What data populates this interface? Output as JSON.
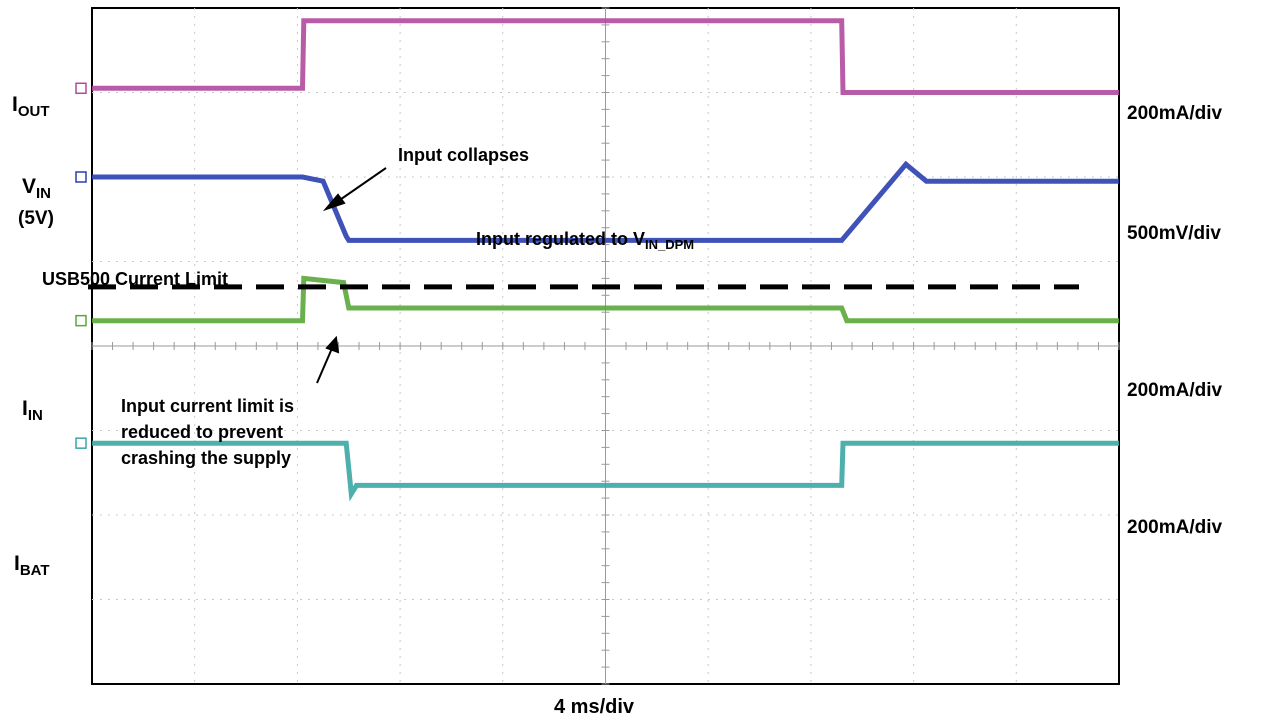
{
  "chart_data": {
    "type": "line",
    "title": "",
    "xlabel": "4 ms/div",
    "ylabel": "",
    "x_unit": "ms",
    "x_per_div": 4,
    "x_divisions": 10,
    "y_divisions": 8,
    "xlim": [
      0,
      40
    ],
    "ylim": [
      0,
      8
    ],
    "grid": true,
    "series": [
      {
        "key": "iout",
        "name": "I",
        "sub": "OUT",
        "scale": "200mA/div",
        "color": "#b04a9e",
        "x": [
          0,
          8.2,
          8.25,
          29.2,
          29.25,
          40
        ],
        "y": [
          7.05,
          7.05,
          7.85,
          7.85,
          7.0,
          7.0
        ]
      },
      {
        "key": "vin",
        "name": "V",
        "sub": "IN",
        "extra": "(5V)",
        "scale": "500mV/div",
        "color": "#2a3fb0",
        "x": [
          0,
          8.2,
          9.0,
          9.9,
          10.0,
          29.2,
          31.7,
          32.5,
          40
        ],
        "y": [
          6.0,
          6.0,
          5.95,
          5.3,
          5.25,
          5.25,
          6.15,
          5.95,
          5.95
        ]
      },
      {
        "key": "iin",
        "name": "I",
        "sub": "IN",
        "scale": "200mA/div",
        "color": "#5aa83a",
        "x": [
          0,
          8.2,
          8.25,
          9.8,
          10.0,
          29.2,
          29.4,
          40
        ],
        "y": [
          4.3,
          4.3,
          4.8,
          4.75,
          4.45,
          4.45,
          4.3,
          4.3
        ]
      },
      {
        "key": "ibat",
        "name": "I",
        "sub": "BAT",
        "scale": "200mA/div",
        "color": "#3aa7a4",
        "x": [
          0,
          9.9,
          10.1,
          10.3,
          29.2,
          29.25,
          40
        ],
        "y": [
          2.85,
          2.85,
          2.25,
          2.35,
          2.35,
          2.85,
          2.85
        ]
      }
    ],
    "annotations": [
      {
        "key": "usb500",
        "text": "USB500 Current Limit",
        "y": 4.7,
        "style": "dashed"
      },
      {
        "key": "collapse",
        "text": "Input collapses",
        "x": 8.8,
        "y": 5.95
      },
      {
        "key": "regulated",
        "text": "Input regulated to V",
        "sub": "IN_DPM"
      },
      {
        "key": "reduced",
        "lines": [
          "Input current limit is",
          "reduced to prevent",
          "crashing the supply"
        ],
        "x": 9.3,
        "y": 4.65
      }
    ]
  }
}
